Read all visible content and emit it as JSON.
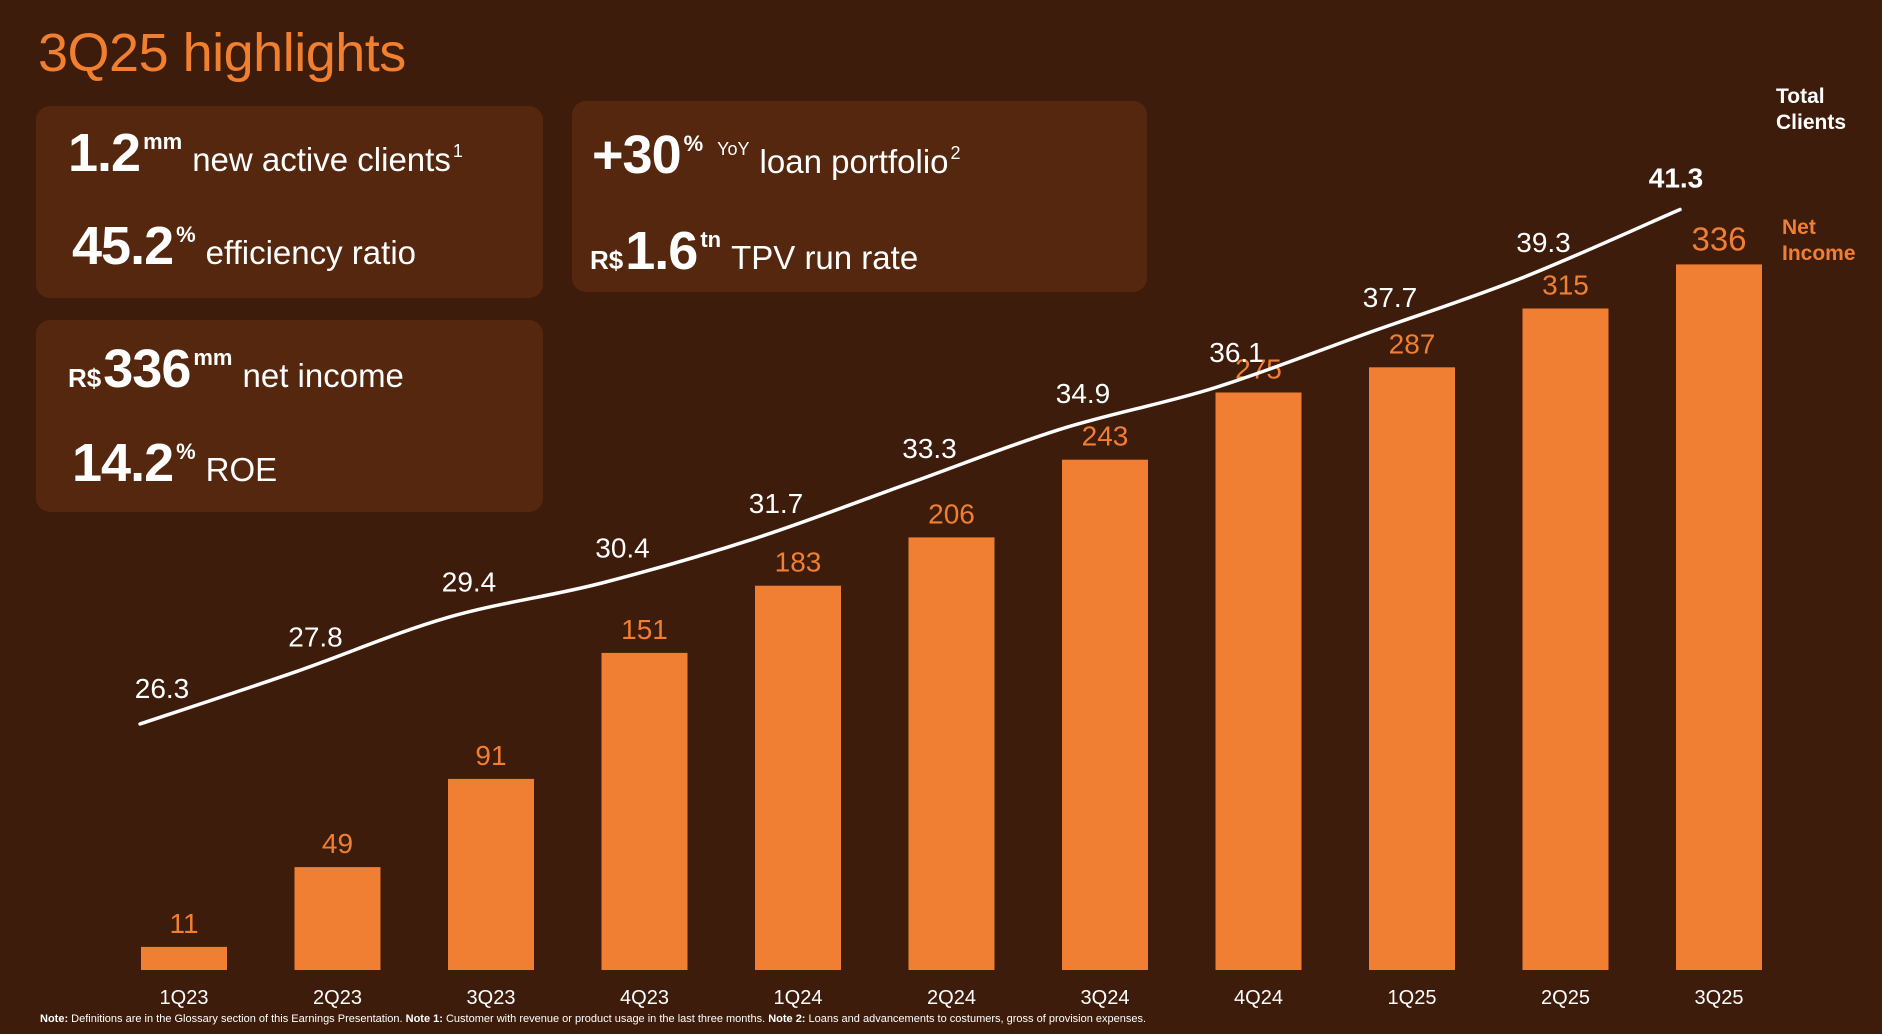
{
  "page": {
    "title": "3Q25 highlights"
  },
  "kpis": {
    "new_clients": {
      "value": "1.2",
      "unit": "mm",
      "label": "new active clients",
      "note": "1"
    },
    "efficiency": {
      "value": "45.2",
      "unit": "%",
      "label": "efficiency ratio"
    },
    "loan": {
      "value": "+30",
      "unit": "%",
      "qualifier": "YoY",
      "label": "loan portfolio",
      "note": "2"
    },
    "tpv": {
      "prefix": "R$",
      "value": "1.6",
      "unit": "tn",
      "label": "TPV run rate"
    },
    "net_income": {
      "prefix": "R$",
      "value": "336",
      "unit": "mm",
      "label": "net income"
    },
    "roe": {
      "value": "14.2",
      "unit": "%",
      "label": "ROE"
    }
  },
  "chart_data": {
    "type": "bar",
    "categories": [
      "1Q23",
      "2Q23",
      "3Q23",
      "4Q23",
      "1Q24",
      "2Q24",
      "3Q24",
      "4Q24",
      "1Q25",
      "2Q25",
      "3Q25"
    ],
    "series": [
      {
        "name": "Net Income",
        "type": "bar",
        "values": [
          11,
          49,
          91,
          151,
          183,
          206,
          243,
          275,
          287,
          315,
          336
        ]
      },
      {
        "name": "Total Clients",
        "type": "line",
        "values": [
          26.3,
          27.8,
          29.4,
          30.4,
          31.7,
          33.3,
          34.9,
          36.1,
          37.7,
          39.3,
          41.3
        ]
      }
    ],
    "legend": [
      {
        "series": "Total Clients",
        "lines": [
          "Total",
          "Clients"
        ]
      },
      {
        "series": "Net Income",
        "lines": [
          "Net",
          "Income"
        ]
      }
    ],
    "grid": false,
    "colors": {
      "bar": "#f07f33",
      "line": "#ffffff",
      "background": "#3e1c0b",
      "card": "#55270f",
      "accent": "#f07f30"
    }
  },
  "footnote": {
    "parts": [
      {
        "bold": "Note:",
        "text": " Definitions are in the Glossary section of this Earnings Presentation. "
      },
      {
        "bold": "Note 1:",
        "text": " Customer with revenue or product usage in the last three months. "
      },
      {
        "bold": "Note 2:",
        "text": " Loans and advancements to costumers, gross of provision expenses."
      }
    ]
  }
}
